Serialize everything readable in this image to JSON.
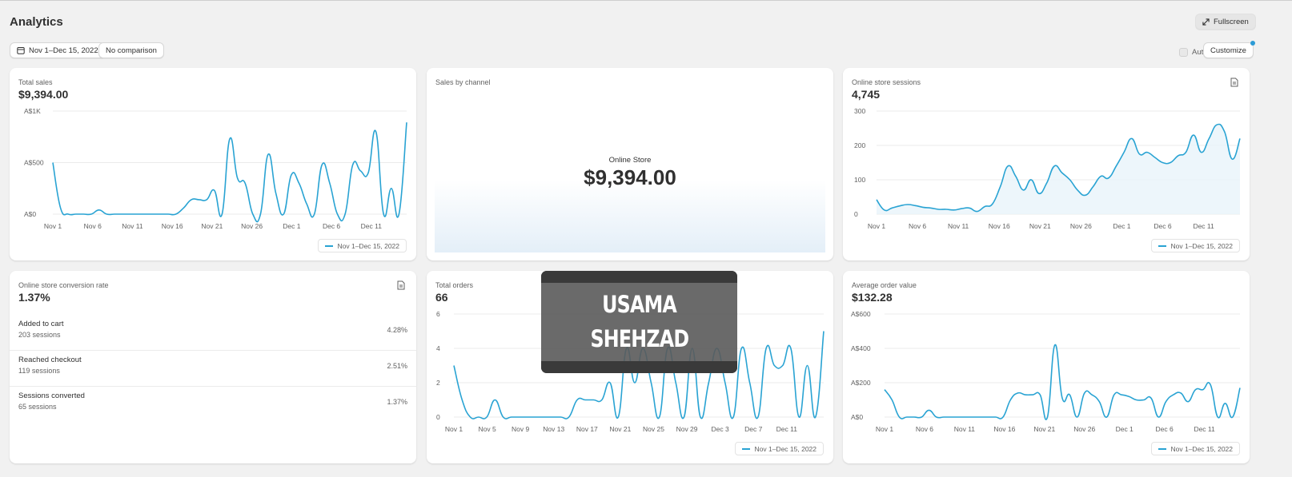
{
  "header": {
    "title": "Analytics",
    "fullscreen_label": "Fullscreen",
    "date_range_label": "Nov 1–Dec 15, 2022",
    "comparison_label": "No comparison",
    "auto_refresh_label": "Auto-refresh",
    "auto_refresh_checked": false,
    "customize_label": "Customize"
  },
  "colors": {
    "accent": "#29a3d3",
    "fill": "#e8f4fa",
    "grid": "#ebebeb"
  },
  "legend_label": "Nov 1–Dec 15, 2022",
  "total_sales": {
    "label": "Total sales",
    "value": "$9,394.00",
    "chart_data": {
      "type": "line",
      "y_ticks": [
        "A$1K",
        "A$500",
        "A$0"
      ],
      "ylim": [
        0,
        1000
      ],
      "x_labels": [
        "Nov 1",
        "Nov 6",
        "Nov 11",
        "Nov 16",
        "Nov 21",
        "Nov 26",
        "Dec 1",
        "Dec 6",
        "Dec 11"
      ],
      "series": [
        {
          "name": "Nov 1–Dec 15, 2022",
          "values": [
            500,
            60,
            0,
            0,
            0,
            0,
            40,
            0,
            0,
            0,
            0,
            0,
            0,
            0,
            0,
            0,
            0,
            60,
            140,
            140,
            140,
            230,
            0,
            730,
            350,
            300,
            0,
            0,
            580,
            200,
            0,
            380,
            300,
            100,
            0,
            480,
            300,
            0,
            0,
            480,
            420,
            400,
            800,
            0,
            250,
            0,
            890
          ]
        }
      ]
    }
  },
  "sales_by_channel": {
    "label": "Sales by channel",
    "channel_name": "Online Store",
    "channel_value": "$9,394.00"
  },
  "sessions": {
    "label": "Online store sessions",
    "value": "4,745",
    "chart_data": {
      "type": "area",
      "y_ticks": [
        "300",
        "200",
        "100",
        "0"
      ],
      "ylim": [
        0,
        300
      ],
      "x_labels": [
        "Nov 1",
        "Nov 6",
        "Nov 11",
        "Nov 16",
        "Nov 21",
        "Nov 26",
        "Dec 1",
        "Dec 6",
        "Dec 11"
      ],
      "series": [
        {
          "name": "Nov 1–Dec 15, 2022",
          "values": [
            42,
            12,
            18,
            24,
            28,
            25,
            20,
            18,
            14,
            14,
            12,
            16,
            18,
            8,
            22,
            30,
            80,
            140,
            110,
            70,
            100,
            60,
            90,
            140,
            120,
            100,
            70,
            55,
            80,
            110,
            105,
            140,
            180,
            220,
            175,
            180,
            165,
            150,
            150,
            170,
            180,
            230,
            180,
            220,
            260,
            240,
            160,
            220
          ]
        }
      ]
    }
  },
  "conversion": {
    "label": "Online store conversion rate",
    "value": "1.37%",
    "rows": [
      {
        "name": "Added to cart",
        "sessions": "203 sessions",
        "pct": "4.28%"
      },
      {
        "name": "Reached checkout",
        "sessions": "119 sessions",
        "pct": "2.51%"
      },
      {
        "name": "Sessions converted",
        "sessions": "65 sessions",
        "pct": "1.37%"
      }
    ]
  },
  "total_orders": {
    "label": "Total orders",
    "value": "66",
    "chart_data": {
      "type": "line",
      "y_ticks": [
        "6",
        "4",
        "2",
        "0"
      ],
      "ylim": [
        0,
        6
      ],
      "x_labels": [
        "Nov 1",
        "Nov 5",
        "Nov 9",
        "Nov 13",
        "Nov 17",
        "Nov 21",
        "Nov 25",
        "Nov 29",
        "Dec 3",
        "Dec 7",
        "Dec 11"
      ],
      "series": [
        {
          "name": "Nov 1–Dec 15, 2022",
          "values": [
            3,
            1,
            0,
            0,
            0,
            1,
            0,
            0,
            0,
            0,
            0,
            0,
            0,
            0,
            0,
            1,
            1,
            1,
            1,
            2,
            0,
            4,
            2,
            4,
            2,
            0,
            4,
            2,
            0,
            4,
            0,
            2,
            4,
            2,
            0,
            4,
            2,
            0,
            4,
            3,
            3,
            4,
            0,
            3,
            0,
            5
          ]
        }
      ]
    }
  },
  "aov": {
    "label": "Average order value",
    "value": "$132.28",
    "chart_data": {
      "type": "line",
      "y_ticks": [
        "A$600",
        "A$400",
        "A$200",
        "A$0"
      ],
      "ylim": [
        0,
        600
      ],
      "x_labels": [
        "Nov 1",
        "Nov 6",
        "Nov 11",
        "Nov 16",
        "Nov 21",
        "Nov 26",
        "Dec 1",
        "Dec 6",
        "Dec 11"
      ],
      "series": [
        {
          "name": "Nov 1–Dec 15, 2022",
          "values": [
            160,
            100,
            0,
            0,
            0,
            0,
            40,
            0,
            0,
            0,
            0,
            0,
            0,
            0,
            0,
            0,
            0,
            100,
            140,
            130,
            130,
            130,
            0,
            420,
            110,
            130,
            0,
            140,
            130,
            90,
            0,
            130,
            130,
            120,
            100,
            100,
            110,
            0,
            90,
            130,
            140,
            90,
            160,
            160,
            190,
            0,
            80,
            0,
            170
          ]
        }
      ]
    }
  },
  "watermark": {
    "line1": "USAMA",
    "line2": "SHEHZAD"
  }
}
